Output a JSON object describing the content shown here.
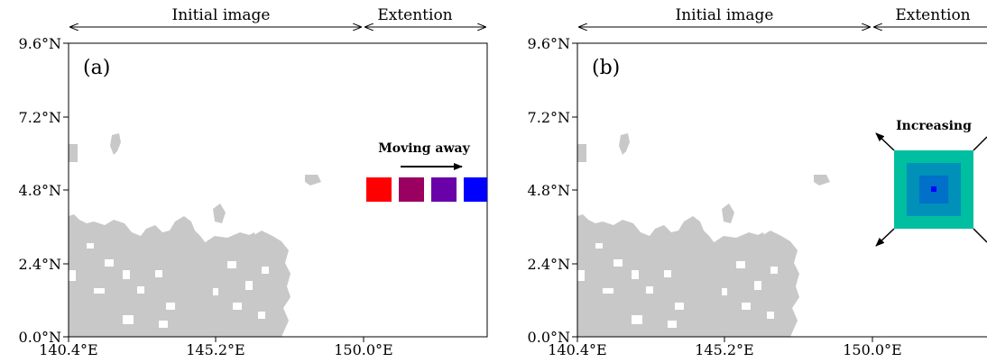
{
  "panels": [
    {
      "label": "(a)",
      "initial_label": "Initial image",
      "extension_label": "Extention",
      "yticks": [
        "9.6°N",
        "7.2°N",
        "4.8°N",
        "2.4°N",
        "0.0°N"
      ],
      "xticks": [
        "140.4°E",
        "145.2°E",
        "150.0°E"
      ],
      "annotation": "Moving away",
      "squares": [
        "#ff0000",
        "#9a0060",
        "#6a00a8",
        "#0000ff"
      ]
    },
    {
      "label": "(b)",
      "initial_label": "Initial image",
      "extension_label": "Extention",
      "yticks": [
        "9.6°N",
        "7.2°N",
        "4.8°N",
        "2.4°N",
        "0.0°N"
      ],
      "xticks": [
        "140.4°E",
        "145.2°E",
        "150.0°E"
      ],
      "annotation": "Increasing",
      "nested_squares": [
        "#00bfa0",
        "#0090b8",
        "#0070c8",
        "#0000ff"
      ]
    }
  ],
  "land_color": "#c8c8c8"
}
